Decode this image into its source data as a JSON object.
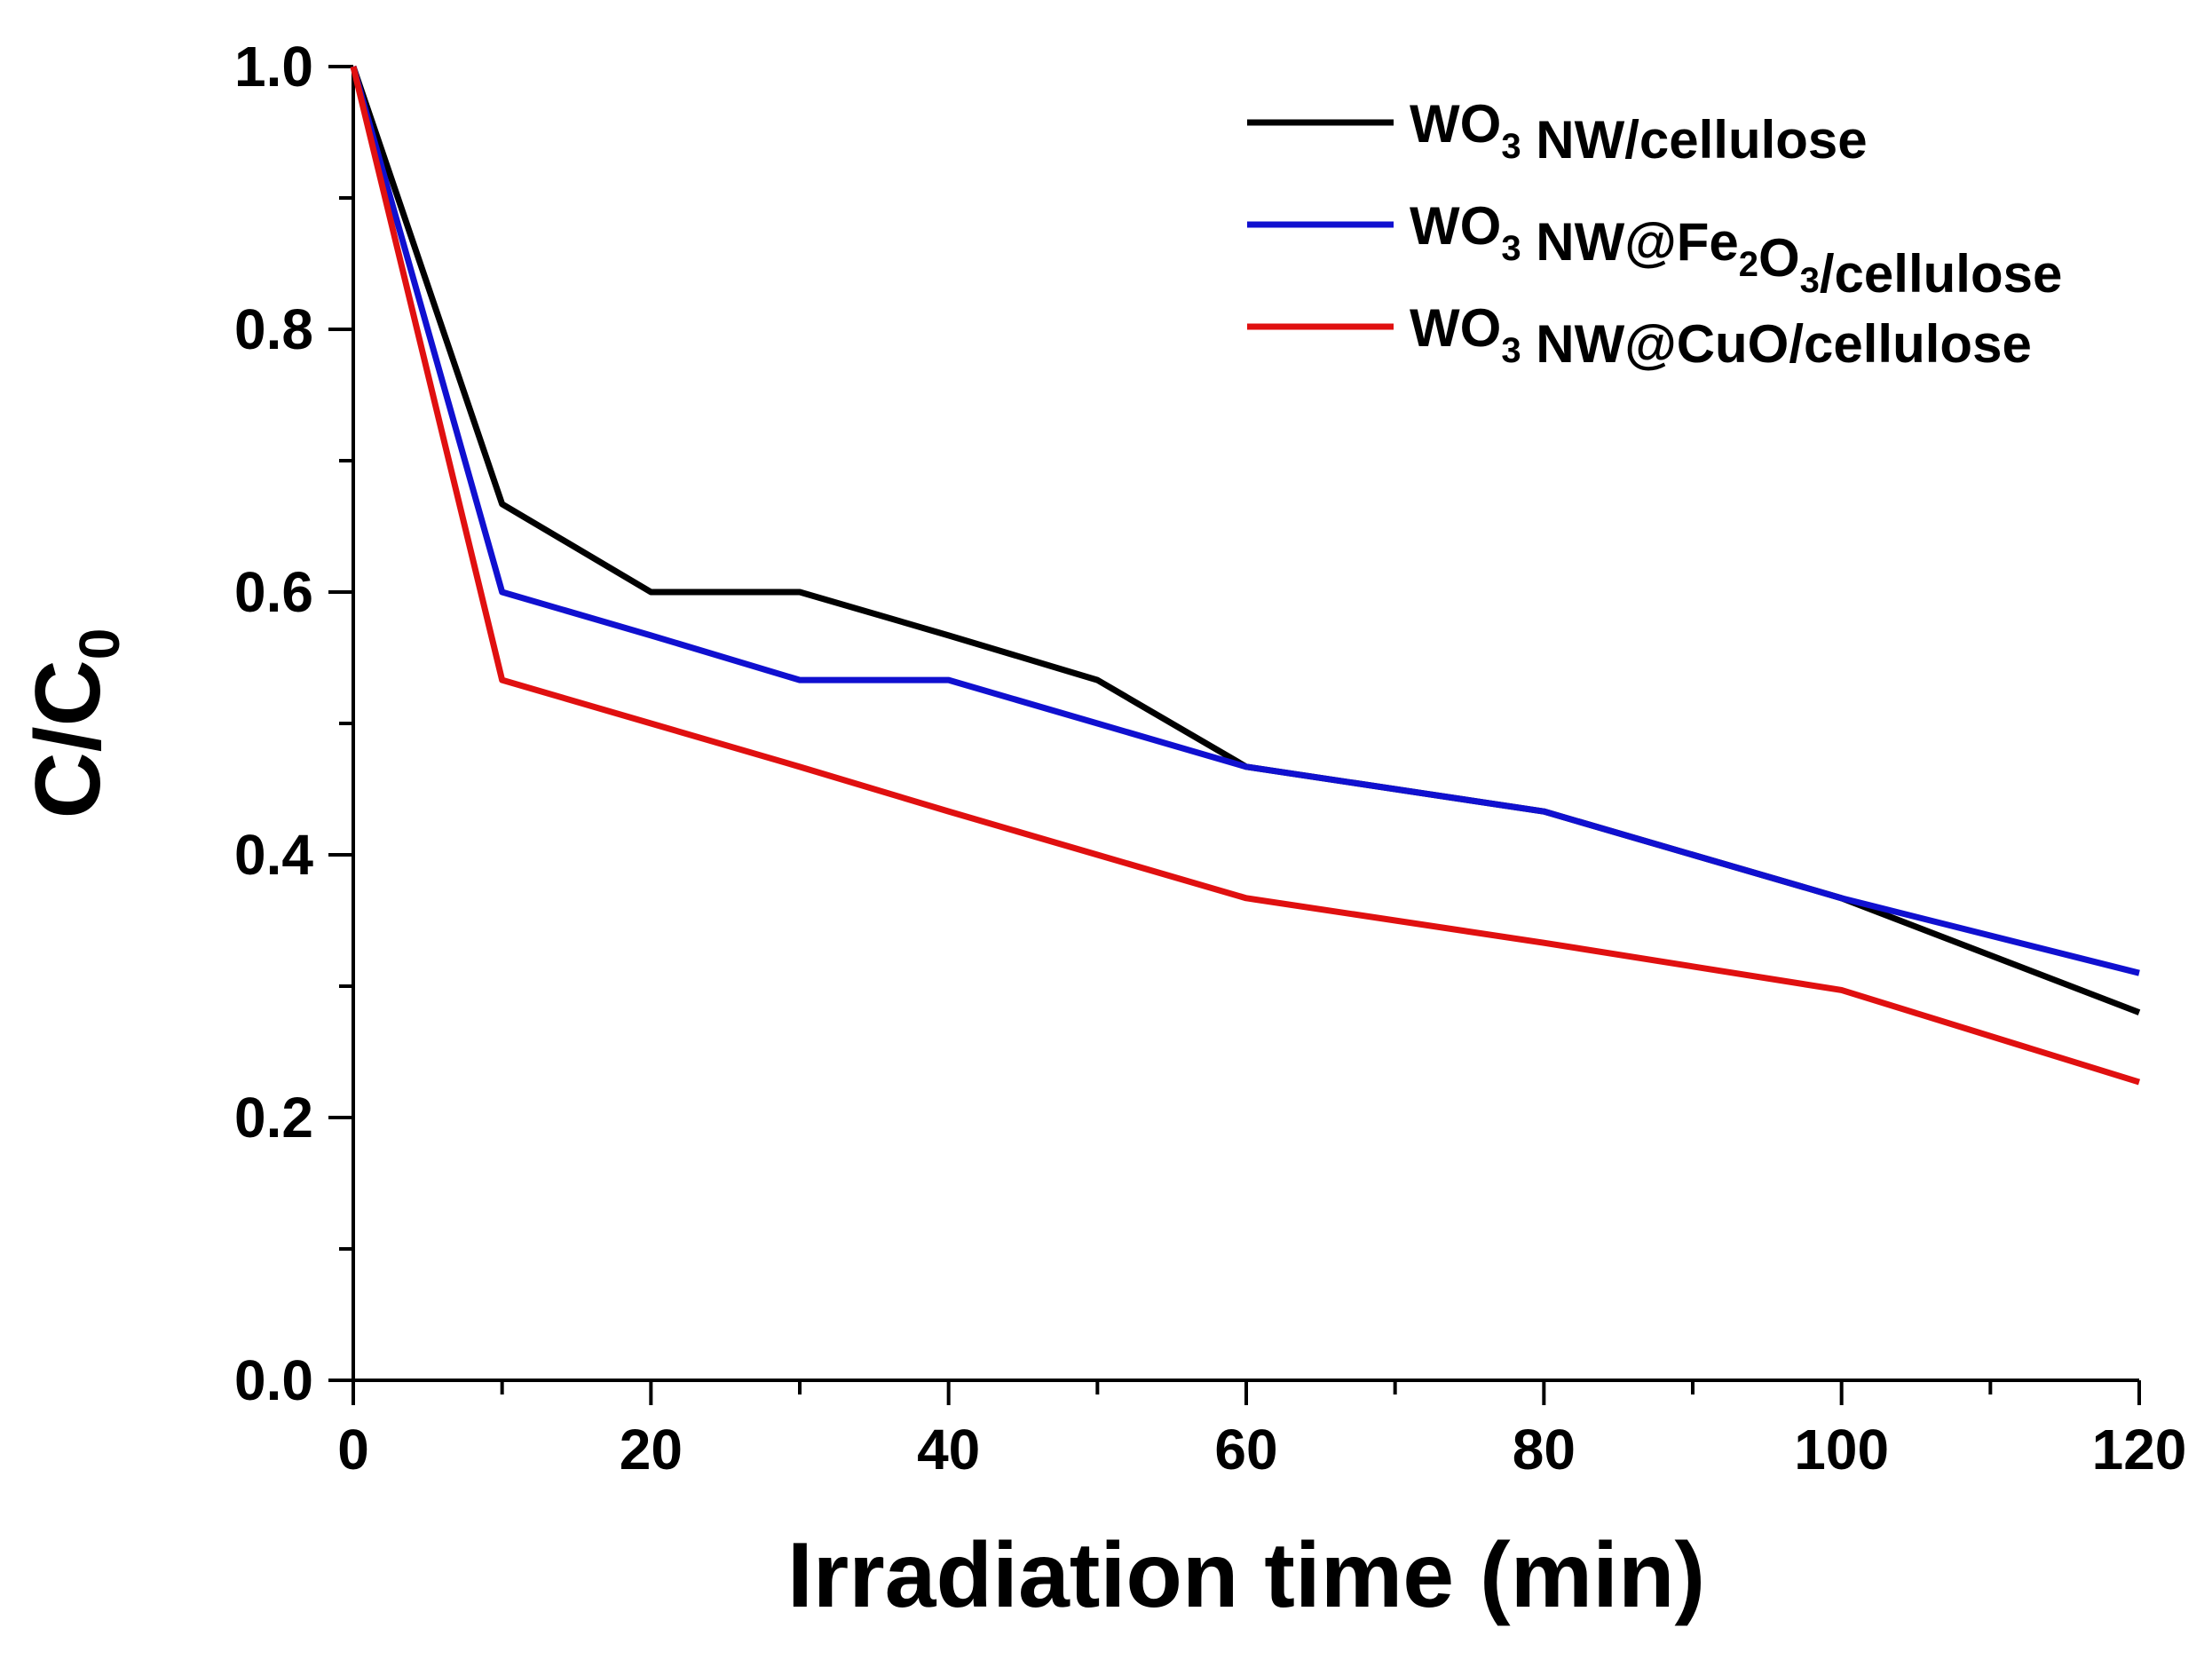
{
  "chart_data": {
    "type": "line",
    "xlabel": "Irradiation time (min)",
    "ylabel": {
      "main": "C/C",
      "sub": "0"
    },
    "xlim": [
      0,
      120
    ],
    "ylim": [
      0,
      1.0
    ],
    "xticks": [
      0,
      20,
      40,
      60,
      80,
      100,
      120
    ],
    "xtick_labels": [
      "0",
      "20",
      "40",
      "60",
      "80",
      "100",
      "120"
    ],
    "yticks": [
      0.0,
      0.2,
      0.4,
      0.6,
      0.8,
      1.0
    ],
    "ytick_labels": [
      "0.0",
      "0.2",
      "0.4",
      "0.6",
      "0.8",
      "1.0"
    ],
    "grid": false,
    "legend_position": "top-right",
    "series": [
      {
        "name": "WO3 NW/cellulose",
        "legend_parts": [
          {
            "text": "WO",
            "sub": false
          },
          {
            "text": "3",
            "sub": true
          },
          {
            "text": " NW/cellulose",
            "sub": false
          }
        ],
        "color": "#000000",
        "x": [
          0,
          10,
          20,
          30,
          40,
          50,
          60,
          80,
          100,
          120
        ],
        "y": [
          1.0,
          0.667,
          0.6,
          0.6,
          0.567,
          0.533,
          0.467,
          0.433,
          0.367,
          0.28
        ]
      },
      {
        "name": "WO3 NW@Fe2O3/cellulose",
        "legend_parts": [
          {
            "text": "WO",
            "sub": false
          },
          {
            "text": "3",
            "sub": true
          },
          {
            "text": " NW@Fe",
            "sub": false
          },
          {
            "text": "2",
            "sub": true
          },
          {
            "text": "O",
            "sub": false
          },
          {
            "text": "3",
            "sub": true
          },
          {
            "text": "/cellulose",
            "sub": false
          }
        ],
        "color": "#1010d0",
        "x": [
          0,
          10,
          20,
          30,
          40,
          50,
          60,
          80,
          100,
          120
        ],
        "y": [
          1.0,
          0.6,
          0.567,
          0.533,
          0.533,
          0.5,
          0.467,
          0.433,
          0.367,
          0.31
        ]
      },
      {
        "name": "WO3 NW@CuO/cellulose",
        "legend_parts": [
          {
            "text": "WO",
            "sub": false
          },
          {
            "text": "3",
            "sub": true
          },
          {
            "text": " NW@CuO/cellulose",
            "sub": false
          }
        ],
        "color": "#e01010",
        "x": [
          0,
          10,
          20,
          30,
          40,
          50,
          60,
          80,
          100,
          120
        ],
        "y": [
          1.0,
          0.533,
          0.5,
          0.467,
          0.433,
          0.4,
          0.367,
          0.333,
          0.297,
          0.227
        ]
      }
    ]
  }
}
